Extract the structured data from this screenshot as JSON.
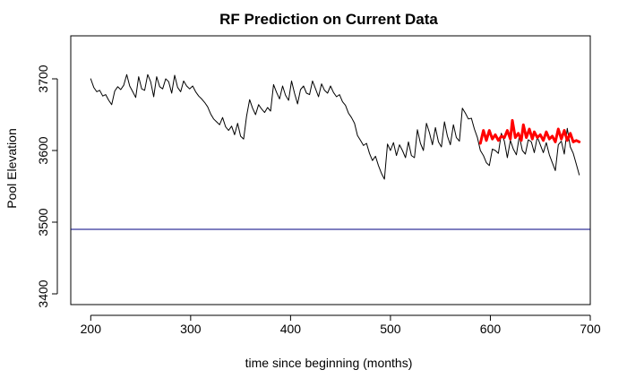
{
  "chart_data": {
    "type": "line",
    "title": "RF Prediction on Current Data",
    "xlabel": "time since beginning (months)",
    "ylabel": "Pool Elevation",
    "xlim": [
      180,
      700
    ],
    "ylim": [
      3385,
      3760
    ],
    "xticks": [
      200,
      300,
      400,
      500,
      600,
      700
    ],
    "yticks": [
      3400,
      3500,
      3600,
      3700
    ],
    "grid": false,
    "legend": "none",
    "reference_line": {
      "y": 3490,
      "color": "#000080"
    },
    "series": [
      {
        "color": "#000000",
        "width": 1,
        "points": [
          [
            200,
            3700
          ],
          [
            203,
            3688
          ],
          [
            206,
            3682
          ],
          [
            209,
            3684
          ],
          [
            212,
            3676
          ],
          [
            215,
            3678
          ],
          [
            218,
            3670
          ],
          [
            221,
            3664
          ],
          [
            224,
            3683
          ],
          [
            227,
            3689
          ],
          [
            230,
            3685
          ],
          [
            233,
            3691
          ],
          [
            236,
            3706
          ],
          [
            239,
            3690
          ],
          [
            242,
            3682
          ],
          [
            245,
            3674
          ],
          [
            248,
            3703
          ],
          [
            251,
            3686
          ],
          [
            254,
            3684
          ],
          [
            257,
            3706
          ],
          [
            260,
            3696
          ],
          [
            263,
            3675
          ],
          [
            266,
            3703
          ],
          [
            269,
            3689
          ],
          [
            272,
            3686
          ],
          [
            275,
            3700
          ],
          [
            278,
            3696
          ],
          [
            281,
            3680
          ],
          [
            284,
            3705
          ],
          [
            287,
            3688
          ],
          [
            290,
            3682
          ],
          [
            293,
            3697
          ],
          [
            296,
            3690
          ],
          [
            299,
            3686
          ],
          [
            302,
            3690
          ],
          [
            305,
            3682
          ],
          [
            308,
            3676
          ],
          [
            311,
            3672
          ],
          [
            314,
            3667
          ],
          [
            317,
            3661
          ],
          [
            320,
            3651
          ],
          [
            323,
            3644
          ],
          [
            326,
            3640
          ],
          [
            329,
            3636
          ],
          [
            332,
            3646
          ],
          [
            335,
            3633
          ],
          [
            338,
            3628
          ],
          [
            341,
            3634
          ],
          [
            344,
            3622
          ],
          [
            347,
            3638
          ],
          [
            350,
            3620
          ],
          [
            353,
            3616
          ],
          [
            356,
            3648
          ],
          [
            359,
            3671
          ],
          [
            362,
            3659
          ],
          [
            365,
            3650
          ],
          [
            368,
            3664
          ],
          [
            371,
            3658
          ],
          [
            374,
            3653
          ],
          [
            377,
            3660
          ],
          [
            380,
            3655
          ],
          [
            383,
            3692
          ],
          [
            386,
            3681
          ],
          [
            389,
            3672
          ],
          [
            392,
            3690
          ],
          [
            395,
            3677
          ],
          [
            398,
            3670
          ],
          [
            401,
            3697
          ],
          [
            404,
            3680
          ],
          [
            407,
            3665
          ],
          [
            410,
            3685
          ],
          [
            413,
            3690
          ],
          [
            416,
            3680
          ],
          [
            419,
            3678
          ],
          [
            422,
            3697
          ],
          [
            425,
            3686
          ],
          [
            428,
            3675
          ],
          [
            431,
            3693
          ],
          [
            434,
            3684
          ],
          [
            437,
            3680
          ],
          [
            440,
            3690
          ],
          [
            443,
            3681
          ],
          [
            446,
            3675
          ],
          [
            449,
            3678
          ],
          [
            452,
            3668
          ],
          [
            455,
            3663
          ],
          [
            458,
            3652
          ],
          [
            461,
            3646
          ],
          [
            464,
            3638
          ],
          [
            467,
            3621
          ],
          [
            470,
            3614
          ],
          [
            473,
            3607
          ],
          [
            476,
            3610
          ],
          [
            479,
            3596
          ],
          [
            482,
            3586
          ],
          [
            485,
            3592
          ],
          [
            488,
            3579
          ],
          [
            491,
            3568
          ],
          [
            494,
            3560
          ],
          [
            497,
            3609
          ],
          [
            500,
            3600
          ],
          [
            503,
            3611
          ],
          [
            506,
            3593
          ],
          [
            509,
            3608
          ],
          [
            512,
            3600
          ],
          [
            515,
            3590
          ],
          [
            518,
            3612
          ],
          [
            521,
            3593
          ],
          [
            524,
            3590
          ],
          [
            527,
            3629
          ],
          [
            530,
            3610
          ],
          [
            533,
            3600
          ],
          [
            536,
            3638
          ],
          [
            539,
            3625
          ],
          [
            542,
            3608
          ],
          [
            545,
            3632
          ],
          [
            548,
            3612
          ],
          [
            551,
            3605
          ],
          [
            554,
            3640
          ],
          [
            557,
            3620
          ],
          [
            560,
            3608
          ],
          [
            563,
            3636
          ],
          [
            566,
            3618
          ],
          [
            569,
            3613
          ],
          [
            572,
            3659
          ],
          [
            575,
            3652
          ],
          [
            578,
            3644
          ],
          [
            581,
            3645
          ],
          [
            584,
            3630
          ],
          [
            587,
            3618
          ],
          [
            590,
            3600
          ],
          [
            593,
            3593
          ],
          [
            596,
            3583
          ],
          [
            599,
            3579
          ],
          [
            602,
            3602
          ],
          [
            605,
            3600
          ],
          [
            608,
            3596
          ],
          [
            611,
            3624
          ],
          [
            614,
            3613
          ],
          [
            617,
            3590
          ],
          [
            620,
            3614
          ],
          [
            623,
            3602
          ],
          [
            626,
            3594
          ],
          [
            629,
            3620
          ],
          [
            632,
            3600
          ],
          [
            635,
            3595
          ],
          [
            638,
            3615
          ],
          [
            641,
            3612
          ],
          [
            644,
            3597
          ],
          [
            647,
            3619
          ],
          [
            650,
            3608
          ],
          [
            653,
            3597
          ],
          [
            656,
            3611
          ],
          [
            659,
            3594
          ],
          [
            662,
            3583
          ],
          [
            665,
            3572
          ],
          [
            668,
            3608
          ],
          [
            671,
            3613
          ],
          [
            674,
            3595
          ],
          [
            677,
            3631
          ],
          [
            680,
            3605
          ],
          [
            683,
            3596
          ],
          [
            686,
            3581
          ],
          [
            689,
            3566
          ]
        ]
      },
      {
        "color": "#ff0000",
        "width": 3,
        "points": [
          [
            590,
            3610
          ],
          [
            593,
            3628
          ],
          [
            596,
            3614
          ],
          [
            599,
            3628
          ],
          [
            602,
            3616
          ],
          [
            605,
            3622
          ],
          [
            608,
            3614
          ],
          [
            611,
            3620
          ],
          [
            614,
            3618
          ],
          [
            617,
            3628
          ],
          [
            620,
            3616
          ],
          [
            622,
            3642
          ],
          [
            625,
            3618
          ],
          [
            628,
            3624
          ],
          [
            631,
            3614
          ],
          [
            633,
            3636
          ],
          [
            636,
            3618
          ],
          [
            639,
            3630
          ],
          [
            642,
            3616
          ],
          [
            644,
            3626
          ],
          [
            647,
            3618
          ],
          [
            650,
            3622
          ],
          [
            653,
            3614
          ],
          [
            656,
            3626
          ],
          [
            659,
            3616
          ],
          [
            662,
            3620
          ],
          [
            665,
            3612
          ],
          [
            668,
            3630
          ],
          [
            671,
            3616
          ],
          [
            674,
            3628
          ],
          [
            677,
            3614
          ],
          [
            680,
            3624
          ],
          [
            683,
            3612
          ],
          [
            686,
            3614
          ],
          [
            689,
            3612
          ]
        ]
      }
    ]
  }
}
